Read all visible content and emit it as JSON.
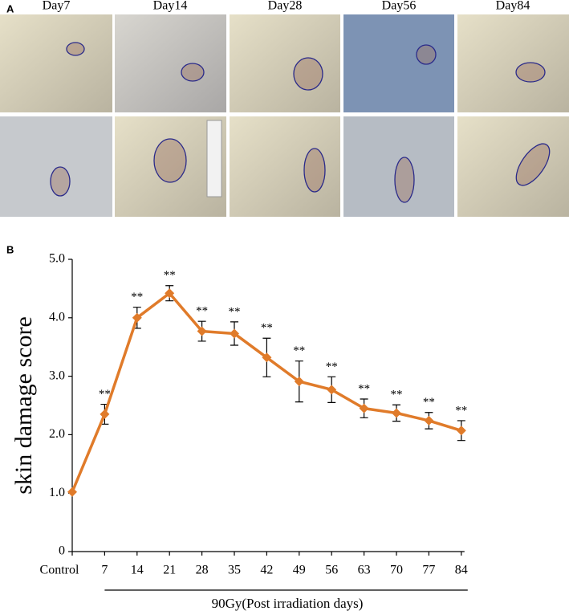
{
  "panel_a": {
    "label": "A",
    "columns": [
      "Day7",
      "Day14",
      "Day28",
      "Day56",
      "Day84"
    ]
  },
  "chart_data": {
    "type": "line",
    "panel_label": "B",
    "y_label": "skin damage score",
    "x_label": "90Gy(Post irradiation days)",
    "categories": [
      "Control",
      "7",
      "14",
      "21",
      "28",
      "35",
      "42",
      "49",
      "56",
      "63",
      "70",
      "77",
      "84"
    ],
    "values": [
      1.02,
      2.35,
      4.0,
      4.42,
      3.77,
      3.73,
      3.32,
      2.91,
      2.77,
      2.45,
      2.37,
      2.24,
      2.07
    ],
    "errors": [
      null,
      0.17,
      0.18,
      0.13,
      0.17,
      0.2,
      0.33,
      0.35,
      0.22,
      0.16,
      0.14,
      0.14,
      0.17
    ],
    "annotations": [
      null,
      "**",
      "**",
      "**",
      "**",
      "**",
      "**",
      "**",
      "**",
      "**",
      "**",
      "**",
      "**"
    ],
    "color": "#e07b2a",
    "ylim": [
      0,
      5
    ],
    "yticks": [
      0,
      {
        "value": 1,
        "label": "1.0"
      },
      {
        "value": 2,
        "label": "2.0"
      },
      {
        "value": 3,
        "label": "3.0"
      },
      {
        "value": 4,
        "label": "4.0"
      },
      {
        "value": 5,
        "label": "5.0"
      }
    ]
  }
}
